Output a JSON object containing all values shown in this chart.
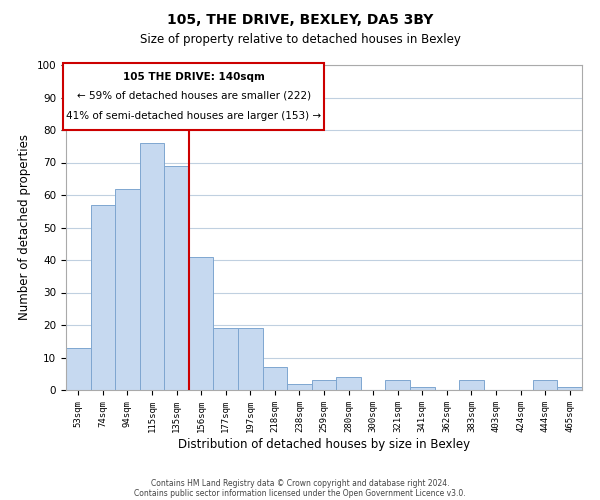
{
  "title": "105, THE DRIVE, BEXLEY, DA5 3BY",
  "subtitle": "Size of property relative to detached houses in Bexley",
  "xlabel": "Distribution of detached houses by size in Bexley",
  "ylabel": "Number of detached properties",
  "bar_labels": [
    "53sqm",
    "74sqm",
    "94sqm",
    "115sqm",
    "135sqm",
    "156sqm",
    "177sqm",
    "197sqm",
    "218sqm",
    "238sqm",
    "259sqm",
    "280sqm",
    "300sqm",
    "321sqm",
    "341sqm",
    "362sqm",
    "383sqm",
    "403sqm",
    "424sqm",
    "444sqm",
    "465sqm"
  ],
  "bar_values": [
    13,
    57,
    62,
    76,
    69,
    41,
    19,
    19,
    7,
    2,
    3,
    4,
    0,
    3,
    1,
    0,
    3,
    0,
    0,
    3,
    1
  ],
  "bar_color": "#c6d9f0",
  "bar_edge_color": "#7ea6d0",
  "vline_color": "#cc0000",
  "vline_x": 4.5,
  "ylim": [
    0,
    100
  ],
  "ann_line1": "105 THE DRIVE: 140sqm",
  "ann_line2": "← 59% of detached houses are smaller (222)",
  "ann_line3": "41% of semi-detached houses are larger (153) →",
  "annotation_box_color": "#cc0000",
  "annotation_box_fill": "#ffffff",
  "footer_line1": "Contains HM Land Registry data © Crown copyright and database right 2024.",
  "footer_line2": "Contains public sector information licensed under the Open Government Licence v3.0.",
  "background_color": "#ffffff",
  "grid_color": "#c0d0e0"
}
